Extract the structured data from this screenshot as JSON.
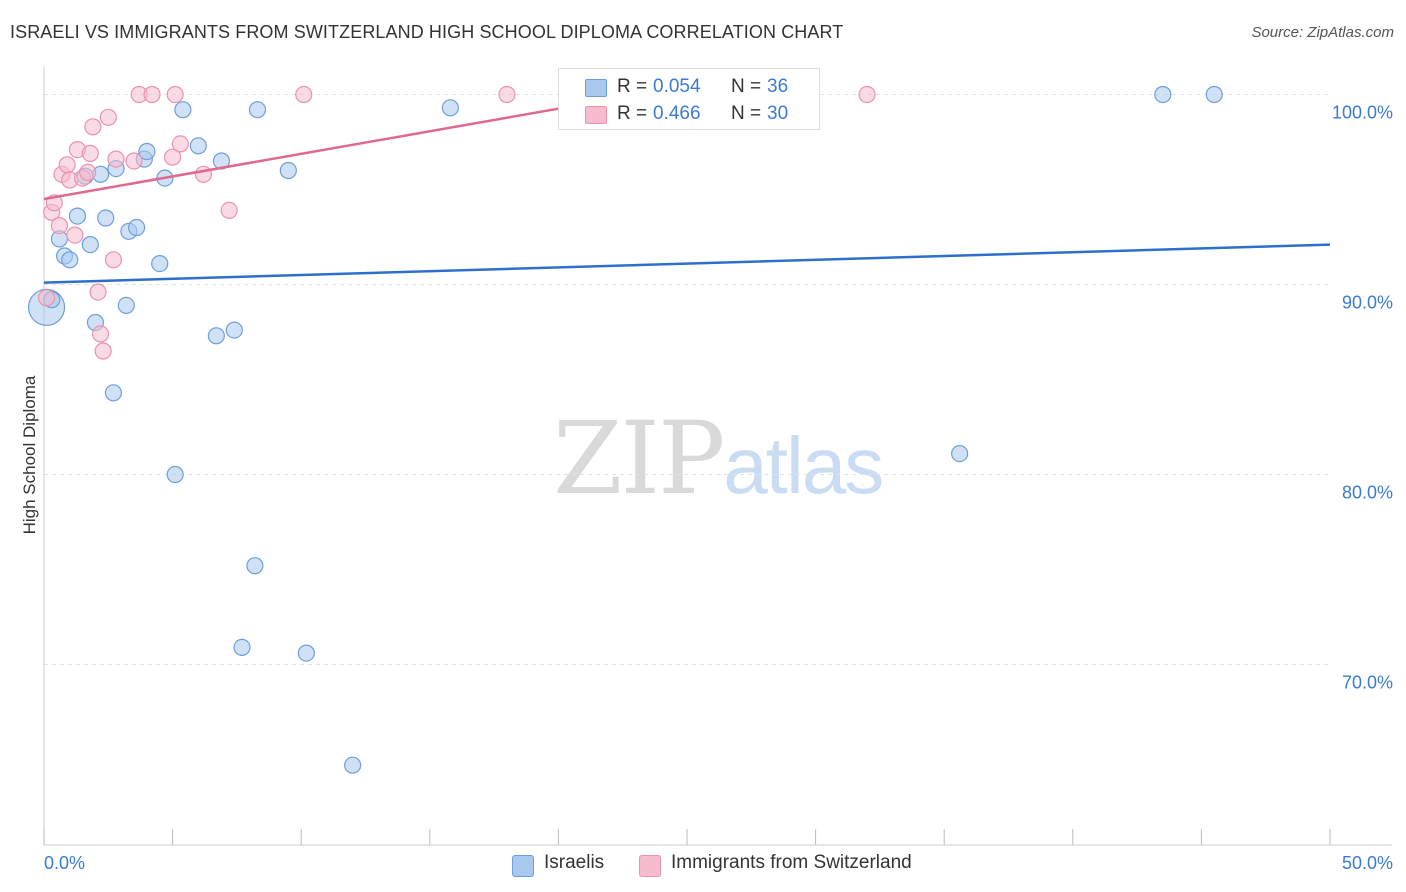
{
  "header": {
    "title": "ISRAELI VS IMMIGRANTS FROM SWITZERLAND HIGH SCHOOL DIPLOMA CORRELATION CHART",
    "source": "Source: ZipAtlas.com"
  },
  "watermark": {
    "zip": "ZIP",
    "atlas": "atlas"
  },
  "legend_top": {
    "rows": [
      {
        "r_label": "R =",
        "r_value": "0.054",
        "n_label": "N =",
        "n_value": "36"
      },
      {
        "r_label": "R =",
        "r_value": "0.466",
        "n_label": "N =",
        "n_value": "30"
      }
    ]
  },
  "legend_bottom": {
    "israelis": "Israelis",
    "swiss": "Immigrants from Switzerland"
  },
  "colors": {
    "blue_fill": "#a9c8ef",
    "blue_stroke": "#6d9fdc",
    "blue_line": "#2d6fcc",
    "pink_fill": "#f6bccd",
    "pink_stroke": "#eb92ad",
    "pink_line": "#e06890",
    "tick_text": "#3b7bd4",
    "grid": "#e2e2e2"
  },
  "chart_data": {
    "type": "scatter",
    "title": "ISRAELI VS IMMIGRANTS FROM SWITZERLAND HIGH SCHOOL DIPLOMA CORRELATION CHART",
    "xlabel": "",
    "ylabel": "High School Diploma",
    "xlim": [
      0,
      50
    ],
    "ylim": [
      60.5,
      101.5
    ],
    "x_tick_labels": [
      "0.0%",
      "50.0%"
    ],
    "y_ticks": [
      70,
      80,
      90,
      100
    ],
    "y_tick_labels": [
      "70.0%",
      "80.0%",
      "90.0%",
      "100.0%"
    ],
    "grid": true,
    "series": [
      {
        "name": "Israelis",
        "color": "blue",
        "R": 0.054,
        "N": 36,
        "trend": {
          "x": [
            0,
            50
          ],
          "y": [
            90.1,
            92.1
          ]
        },
        "points": [
          {
            "x": 0.1,
            "y": 88.8,
            "size": "large"
          },
          {
            "x": 0.3,
            "y": 89.2
          },
          {
            "x": 0.6,
            "y": 92.4
          },
          {
            "x": 0.8,
            "y": 91.5
          },
          {
            "x": 1.0,
            "y": 91.3
          },
          {
            "x": 1.3,
            "y": 93.6
          },
          {
            "x": 1.6,
            "y": 95.7
          },
          {
            "x": 1.8,
            "y": 92.1
          },
          {
            "x": 2.0,
            "y": 88.0
          },
          {
            "x": 2.2,
            "y": 95.8
          },
          {
            "x": 2.4,
            "y": 93.5
          },
          {
            "x": 2.7,
            "y": 84.3
          },
          {
            "x": 2.8,
            "y": 96.1
          },
          {
            "x": 3.2,
            "y": 88.9
          },
          {
            "x": 3.3,
            "y": 92.8
          },
          {
            "x": 3.6,
            "y": 93.0
          },
          {
            "x": 3.9,
            "y": 96.6
          },
          {
            "x": 4.0,
            "y": 97.0
          },
          {
            "x": 4.5,
            "y": 91.1
          },
          {
            "x": 4.7,
            "y": 95.6
          },
          {
            "x": 5.1,
            "y": 80.0
          },
          {
            "x": 5.4,
            "y": 99.2
          },
          {
            "x": 6.0,
            "y": 97.3
          },
          {
            "x": 6.7,
            "y": 87.3
          },
          {
            "x": 6.9,
            "y": 96.5
          },
          {
            "x": 7.4,
            "y": 87.6
          },
          {
            "x": 7.7,
            "y": 70.9
          },
          {
            "x": 8.2,
            "y": 75.2
          },
          {
            "x": 8.3,
            "y": 99.2
          },
          {
            "x": 9.5,
            "y": 96.0
          },
          {
            "x": 10.2,
            "y": 70.6
          },
          {
            "x": 12.0,
            "y": 64.7
          },
          {
            "x": 15.8,
            "y": 99.3
          },
          {
            "x": 35.6,
            "y": 81.1
          },
          {
            "x": 43.5,
            "y": 100.0
          },
          {
            "x": 45.5,
            "y": 100.0
          }
        ]
      },
      {
        "name": "Immigrants from Switzerland",
        "color": "pink",
        "R": 0.466,
        "N": 30,
        "trend": {
          "x": [
            0,
            22.3
          ],
          "y": [
            94.5,
            99.8
          ]
        },
        "points": [
          {
            "x": 0.1,
            "y": 89.3
          },
          {
            "x": 0.3,
            "y": 93.8
          },
          {
            "x": 0.4,
            "y": 94.3
          },
          {
            "x": 0.6,
            "y": 93.1
          },
          {
            "x": 0.7,
            "y": 95.8
          },
          {
            "x": 0.9,
            "y": 96.3
          },
          {
            "x": 1.0,
            "y": 95.5
          },
          {
            "x": 1.2,
            "y": 92.6
          },
          {
            "x": 1.3,
            "y": 97.1
          },
          {
            "x": 1.5,
            "y": 95.6
          },
          {
            "x": 1.7,
            "y": 95.9
          },
          {
            "x": 1.8,
            "y": 96.9
          },
          {
            "x": 1.9,
            "y": 98.3
          },
          {
            "x": 2.1,
            "y": 89.6
          },
          {
            "x": 2.2,
            "y": 87.4
          },
          {
            "x": 2.3,
            "y": 86.5
          },
          {
            "x": 2.5,
            "y": 98.8
          },
          {
            "x": 2.7,
            "y": 91.3
          },
          {
            "x": 2.8,
            "y": 96.6
          },
          {
            "x": 3.5,
            "y": 96.5
          },
          {
            "x": 3.7,
            "y": 100.0
          },
          {
            "x": 4.2,
            "y": 100.0
          },
          {
            "x": 5.0,
            "y": 96.7
          },
          {
            "x": 5.1,
            "y": 100.0
          },
          {
            "x": 5.3,
            "y": 97.4
          },
          {
            "x": 6.2,
            "y": 95.8
          },
          {
            "x": 7.2,
            "y": 93.9
          },
          {
            "x": 10.1,
            "y": 100.0
          },
          {
            "x": 18.0,
            "y": 100.0
          },
          {
            "x": 32.0,
            "y": 100.0
          }
        ]
      }
    ]
  }
}
